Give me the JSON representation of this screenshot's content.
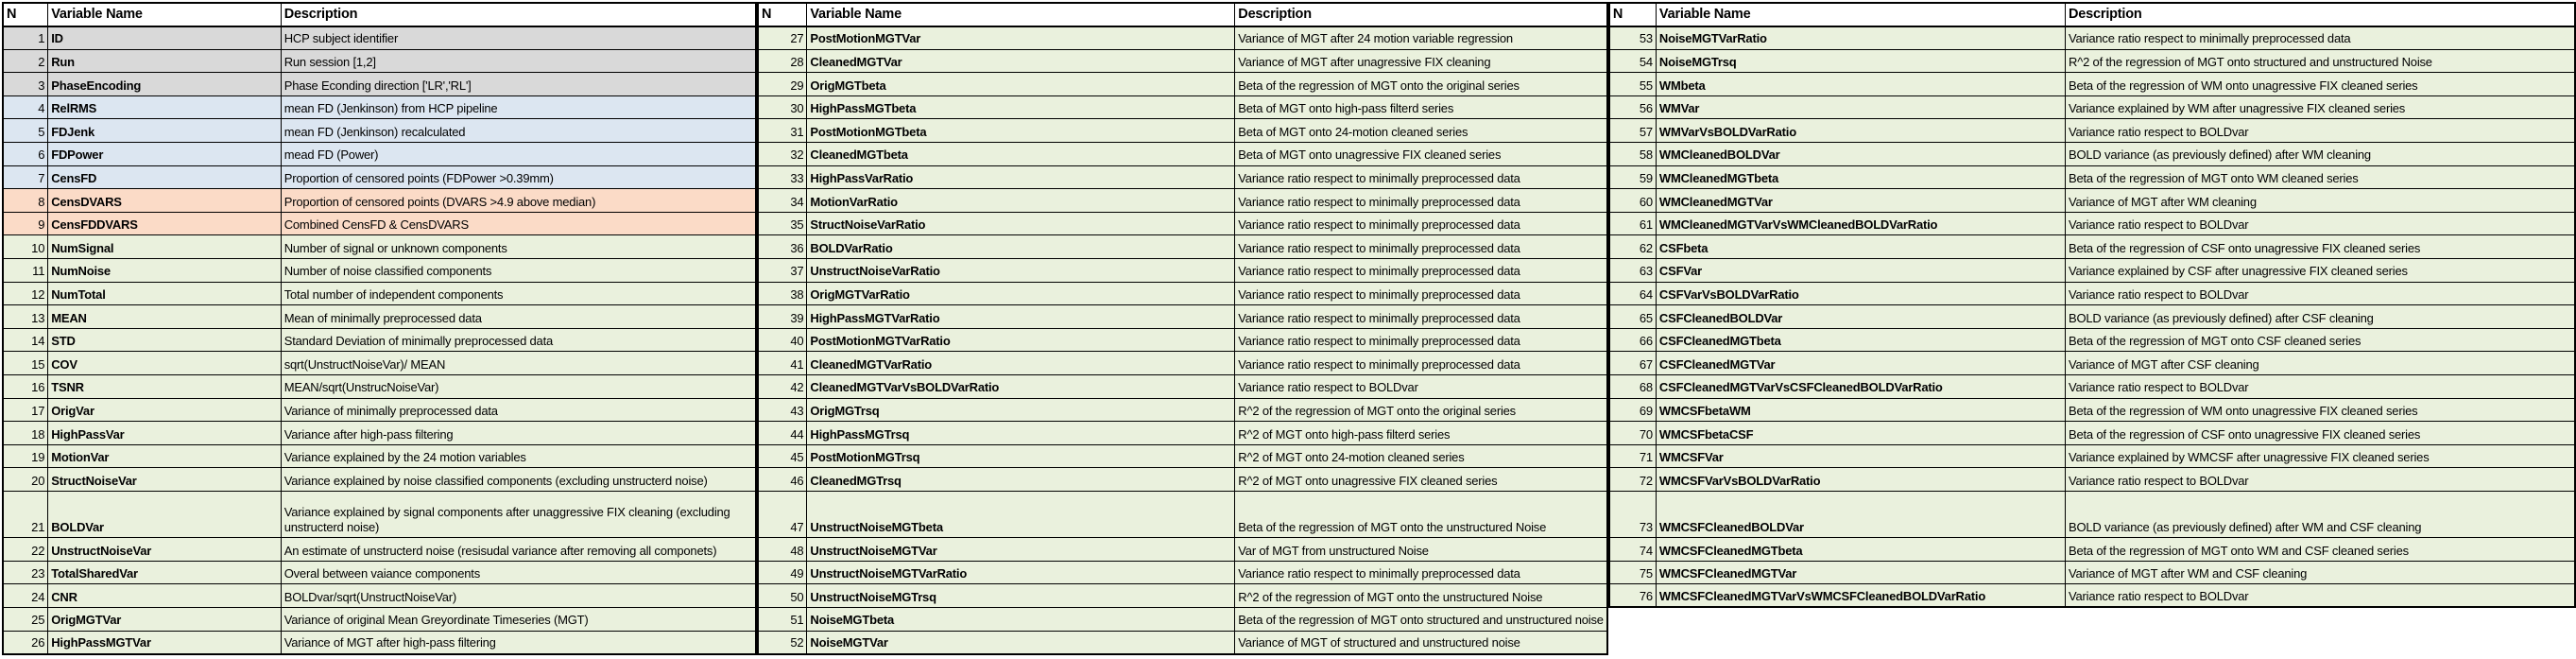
{
  "palette": {
    "gray": "#D9D9D9",
    "blue": "#DCE6F1",
    "orange": "#FBDBC7",
    "green": "#EAF1DD",
    "header_bg": "#FFFFFF",
    "border": "#000000"
  },
  "columns": [
    "N",
    "Variable Name",
    "Description"
  ],
  "tables": [
    {
      "id": "table-variables-1-26",
      "rows": [
        {
          "n": "1",
          "name": "ID",
          "desc": "HCP subject identifier",
          "color": "gray"
        },
        {
          "n": "2",
          "name": "Run",
          "desc": "Run session [1,2]",
          "color": "gray"
        },
        {
          "n": "3",
          "name": "PhaseEncoding",
          "desc": "Phase Econding direction ['LR','RL']",
          "color": "gray"
        },
        {
          "n": "4",
          "name": "RelRMS",
          "desc": "mean FD (Jenkinson) from HCP pipeline",
          "color": "blue"
        },
        {
          "n": "5",
          "name": "FDJenk",
          "desc": "mean FD (Jenkinson) recalculated",
          "color": "blue"
        },
        {
          "n": "6",
          "name": "FDPower",
          "desc": "mead FD (Power)",
          "color": "blue"
        },
        {
          "n": "7",
          "name": "CensFD",
          "desc": "Proportion of censored points (FDPower >0.39mm)",
          "color": "blue"
        },
        {
          "n": "8",
          "name": "CensDVARS",
          "desc": "Proportion of censored points (DVARS >4.9 above median)",
          "color": "orange"
        },
        {
          "n": "9",
          "name": "CensFDDVARS",
          "desc": "Combined CensFD & CensDVARS",
          "color": "orange"
        },
        {
          "n": "10",
          "name": "NumSignal",
          "desc": "Number of signal or unknown components",
          "color": "green"
        },
        {
          "n": "11",
          "name": "NumNoise",
          "desc": "Number of noise classified components",
          "color": "green"
        },
        {
          "n": "12",
          "name": "NumTotal",
          "desc": "Total number of independent components",
          "color": "green"
        },
        {
          "n": "13",
          "name": "MEAN",
          "desc": "Mean of minimally preprocessed data",
          "color": "green"
        },
        {
          "n": "14",
          "name": "STD",
          "desc": "Standard Deviation of minimally preprocessed data",
          "color": "green"
        },
        {
          "n": "15",
          "name": "COV",
          "desc": "sqrt(UnstructNoiseVar)/ MEAN",
          "color": "green"
        },
        {
          "n": "16",
          "name": "TSNR",
          "desc": "MEAN/sqrt(UnstrucNoiseVar)",
          "color": "green"
        },
        {
          "n": "17",
          "name": "OrigVar",
          "desc": "Variance of minimally preprocessed data",
          "color": "green"
        },
        {
          "n": "18",
          "name": "HighPassVar",
          "desc": "Variance after high-pass filtering",
          "color": "green"
        },
        {
          "n": "19",
          "name": "MotionVar",
          "desc": "Variance explained by the 24 motion variables",
          "color": "green"
        },
        {
          "n": "20",
          "name": "StructNoiseVar",
          "desc": "Variance explained by noise classified components (excluding unstructerd noise)",
          "color": "green"
        },
        {
          "n": "21",
          "name": "BOLDVar",
          "desc": "Variance explained by signal components after unaggressive FIX cleaning  (excluding unstructerd noise)",
          "color": "green",
          "tall": true
        },
        {
          "n": "22",
          "name": "UnstructNoiseVar",
          "desc": "An estimate of unstructerd noise (resisudal variance after removing all componets)",
          "color": "green"
        },
        {
          "n": "23",
          "name": "TotalSharedVar",
          "desc": "Overal between vaiance components",
          "color": "green"
        },
        {
          "n": "24",
          "name": "CNR",
          "desc": "BOLDvar/sqrt(UnstructNoiseVar)",
          "color": "green"
        },
        {
          "n": "25",
          "name": "OrigMGTVar",
          "desc": "Variance of original Mean Greyordinate Timeseries (MGT)",
          "color": "green"
        },
        {
          "n": "26",
          "name": "HighPassMGTVar",
          "desc": "Variance of MGT after high-pass filtering",
          "color": "green"
        }
      ]
    },
    {
      "id": "table-variables-27-52",
      "rows": [
        {
          "n": "27",
          "name": "PostMotionMGTVar",
          "desc": "Variance of MGT after 24 motion variable regression",
          "color": "green"
        },
        {
          "n": "28",
          "name": "CleanedMGTVar",
          "desc": "Variance of MGT after unagressive FIX cleaning",
          "color": "green"
        },
        {
          "n": "29",
          "name": "OrigMGTbeta",
          "desc": "Beta of the regression of MGT onto the original series",
          "color": "green"
        },
        {
          "n": "30",
          "name": "HighPassMGTbeta",
          "desc": "Beta of MGT onto high-pass filterd series",
          "color": "green"
        },
        {
          "n": "31",
          "name": "PostMotionMGTbeta",
          "desc": "Beta of MGT onto 24-motion cleaned series",
          "color": "green"
        },
        {
          "n": "32",
          "name": "CleanedMGTbeta",
          "desc": "Beta of MGT onto unagressive FIX cleaned series",
          "color": "green"
        },
        {
          "n": "33",
          "name": "HighPassVarRatio",
          "desc": "Variance ratio respect to minimally preprocessed data",
          "color": "green"
        },
        {
          "n": "34",
          "name": "MotionVarRatio",
          "desc": "Variance ratio respect to minimally preprocessed data",
          "color": "green"
        },
        {
          "n": "35",
          "name": "StructNoiseVarRatio",
          "desc": "Variance ratio respect to minimally preprocessed data",
          "color": "green"
        },
        {
          "n": "36",
          "name": "BOLDVarRatio",
          "desc": "Variance ratio respect to minimally preprocessed data",
          "color": "green"
        },
        {
          "n": "37",
          "name": "UnstructNoiseVarRatio",
          "desc": "Variance ratio respect to minimally preprocessed data",
          "color": "green"
        },
        {
          "n": "38",
          "name": "OrigMGTVarRatio",
          "desc": "Variance ratio respect to minimally preprocessed data",
          "color": "green"
        },
        {
          "n": "39",
          "name": "HighPassMGTVarRatio",
          "desc": "Variance ratio respect to minimally preprocessed data",
          "color": "green"
        },
        {
          "n": "40",
          "name": "PostMotionMGTVarRatio",
          "desc": "Variance ratio respect to minimally preprocessed data",
          "color": "green"
        },
        {
          "n": "41",
          "name": "CleanedMGTVarRatio",
          "desc": "Variance ratio respect to minimally preprocessed data",
          "color": "green"
        },
        {
          "n": "42",
          "name": "CleanedMGTVarVsBOLDVarRatio",
          "desc": "Variance ratio respect to BOLDvar",
          "color": "green"
        },
        {
          "n": "43",
          "name": "OrigMGTrsq",
          "desc": "R^2 of the regression of MGT onto the original series",
          "color": "green"
        },
        {
          "n": "44",
          "name": "HighPassMGTrsq",
          "desc": "R^2 of MGT onto high-pass filterd series",
          "color": "green"
        },
        {
          "n": "45",
          "name": "PostMotionMGTrsq",
          "desc": "R^2 of MGT onto 24-motion cleaned series",
          "color": "green"
        },
        {
          "n": "46",
          "name": "CleanedMGTrsq",
          "desc": "R^2 of MGT onto unagressive FIX cleaned series",
          "color": "green"
        },
        {
          "n": "47",
          "name": "UnstructNoiseMGTbeta",
          "desc": "Beta of the regression of MGT onto the unstructured Noise",
          "color": "green",
          "tall": true
        },
        {
          "n": "48",
          "name": "UnstructNoiseMGTVar",
          "desc": "Var of MGT from unstructured Noise",
          "color": "green"
        },
        {
          "n": "49",
          "name": "UnstructNoiseMGTVarRatio",
          "desc": "Variance ratio respect to minimally preprocessed data",
          "color": "green"
        },
        {
          "n": "50",
          "name": "UnstructNoiseMGTrsq",
          "desc": "R^2 of the regression of MGT onto the unstructured Noise",
          "color": "green"
        },
        {
          "n": "51",
          "name": "NoiseMGTbeta",
          "desc": "Beta of the regression of MGT onto structured and unstructured noise",
          "color": "green"
        },
        {
          "n": "52",
          "name": "NoiseMGTVar",
          "desc": "Variance of MGT of structured and unstructured noise",
          "color": "green"
        }
      ]
    },
    {
      "id": "table-variables-53-76",
      "rows": [
        {
          "n": "53",
          "name": "NoiseMGTVarRatio",
          "desc": "Variance ratio respect to minimally preprocessed data",
          "color": "green"
        },
        {
          "n": "54",
          "name": "NoiseMGTrsq",
          "desc": "R^2 of the regression of MGT onto structured and unstructured Noise",
          "color": "green"
        },
        {
          "n": "55",
          "name": "WMbeta",
          "desc": "Beta of the regression of WM onto unagressive FIX cleaned series",
          "color": "green"
        },
        {
          "n": "56",
          "name": "WMVar",
          "desc": "Variance explained by WM after unagressive FIX cleaned series",
          "color": "green"
        },
        {
          "n": "57",
          "name": "WMVarVsBOLDVarRatio",
          "desc": "Variance ratio respect to BOLDvar",
          "color": "green"
        },
        {
          "n": "58",
          "name": "WMCleanedBOLDVar",
          "desc": "BOLD variance (as previously defined) after WM cleaning",
          "color": "green"
        },
        {
          "n": "59",
          "name": "WMCleanedMGTbeta",
          "desc": "Beta of the regression of MGT onto WM cleaned series",
          "color": "green"
        },
        {
          "n": "60",
          "name": "WMCleanedMGTVar",
          "desc": "Variance of MGT after WM cleaning",
          "color": "green"
        },
        {
          "n": "61",
          "name": "WMCleanedMGTVarVsWMCleanedBOLDVarRatio",
          "desc": "Variance ratio respect to BOLDvar",
          "color": "green"
        },
        {
          "n": "62",
          "name": "CSFbeta",
          "desc": "Beta of the regression of CSF onto unagressive FIX cleaned series",
          "color": "green"
        },
        {
          "n": "63",
          "name": "CSFVar",
          "desc": "Variance explained by CSF after unagressive FIX cleaned series",
          "color": "green"
        },
        {
          "n": "64",
          "name": "CSFVarVsBOLDVarRatio",
          "desc": "Variance ratio respect to BOLDvar",
          "color": "green"
        },
        {
          "n": "65",
          "name": "CSFCleanedBOLDVar",
          "desc": "BOLD variance (as previously defined) after CSF cleaning",
          "color": "green"
        },
        {
          "n": "66",
          "name": "CSFCleanedMGTbeta",
          "desc": "Beta of the regression of MGT onto CSF cleaned series",
          "color": "green"
        },
        {
          "n": "67",
          "name": "CSFCleanedMGTVar",
          "desc": "Variance of MGT after CSF cleaning",
          "color": "green"
        },
        {
          "n": "68",
          "name": "CSFCleanedMGTVarVsCSFCleanedBOLDVarRatio",
          "desc": "Variance ratio respect to BOLDvar",
          "color": "green"
        },
        {
          "n": "69",
          "name": "WMCSFbetaWM",
          "desc": "Beta of the regression of WM onto unagressive FIX cleaned series",
          "color": "green"
        },
        {
          "n": "70",
          "name": "WMCSFbetaCSF",
          "desc": "Beta of the regression of CSF onto unagressive FIX cleaned series",
          "color": "green"
        },
        {
          "n": "71",
          "name": "WMCSFVar",
          "desc": "Variance explained by WMCSF after unagressive FIX cleaned series",
          "color": "green"
        },
        {
          "n": "72",
          "name": "WMCSFVarVsBOLDVarRatio",
          "desc": "Variance ratio respect to BOLDvar",
          "color": "green"
        },
        {
          "n": "73",
          "name": "WMCSFCleanedBOLDVar",
          "desc": "BOLD variance (as previously defined) after WM and CSF cleaning",
          "color": "green",
          "tall": true
        },
        {
          "n": "74",
          "name": "WMCSFCleanedMGTbeta",
          "desc": "Beta of the regression of MGT onto WM and CSF cleaned series",
          "color": "green"
        },
        {
          "n": "75",
          "name": "WMCSFCleanedMGTVar",
          "desc": "Variance of MGT after WM and CSF cleaning",
          "color": "green"
        },
        {
          "n": "76",
          "name": "WMCSFCleanedMGTVarVsWMCSFCleanedBOLDVarRatio",
          "desc": "Variance ratio respect to BOLDvar",
          "color": "green"
        }
      ]
    }
  ]
}
